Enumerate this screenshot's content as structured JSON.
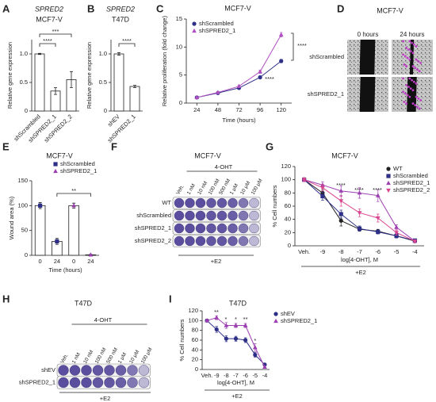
{
  "chart_data": [
    {
      "panel": "A",
      "type": "bar",
      "title": "SPRED2",
      "subtitle": "MCF7-V",
      "ylabel": "Relative gene expression",
      "categories": [
        "shScrambled",
        "shSPRED2_1",
        "shSPRED2_2"
      ],
      "values": [
        1,
        0.35,
        0.55
      ],
      "errors": [
        0.01,
        0.06,
        0.14
      ],
      "ylim": [
        0,
        1.25
      ],
      "yticks": [
        0,
        0.5,
        {
          "value": 1,
          "label": "1.0"
        }
      ],
      "annotations": [
        "****",
        "***"
      ]
    },
    {
      "panel": "B",
      "type": "bar",
      "title": "SPRED2",
      "subtitle": "T47D",
      "ylabel": "Relative gene expression",
      "categories": [
        "shEV",
        "shSPRED2_1"
      ],
      "values": [
        1,
        0.43
      ],
      "errors": [
        0.02,
        0.02
      ],
      "ylim": [
        0,
        1.25
      ],
      "yticks": [
        0,
        0.5,
        {
          "value": 1,
          "label": "1.0"
        }
      ],
      "annotations": [
        "****"
      ]
    },
    {
      "panel": "C",
      "type": "line",
      "title": "MCF7-V",
      "xlabel": "Time (hours)",
      "ylabel": "Relative proliferation (fold change)",
      "x": [
        24,
        48,
        72,
        96,
        120
      ],
      "xlim": [
        12,
        132
      ],
      "xticks": [
        24,
        48,
        72,
        96,
        120
      ],
      "ylim": [
        0,
        15
      ],
      "yticks": [
        0,
        5,
        10,
        15
      ],
      "series": [
        {
          "name": "shScrambled",
          "color": "#2e2f87",
          "marker": "circle",
          "values": [
            1,
            1.8,
            2.7,
            4.6,
            7.5
          ],
          "errors": [
            0.1,
            0.1,
            0.2,
            0.2,
            0.3
          ]
        },
        {
          "name": "shSPRED2_1",
          "color": "#b050c0",
          "marker": "triangle",
          "values": [
            1,
            1.9,
            3,
            5.6,
            12.2
          ],
          "errors": [
            0.1,
            0.1,
            0.2,
            0.3,
            0.4
          ]
        }
      ],
      "annotations": [
        "****",
        "****"
      ]
    },
    {
      "panel": "D",
      "type": "micrograph",
      "title": "MCF7-V",
      "columns": [
        "0 hours",
        "24 hours"
      ],
      "rows": [
        "shScrambled",
        "shSPRED2_1"
      ]
    },
    {
      "panel": "E",
      "type": "bar",
      "title": "MCF7-V",
      "xlabel": "Time (hours)",
      "ylabel": "Wound area (%)",
      "categories": [
        "0",
        "24"
      ],
      "ylim": [
        0,
        150
      ],
      "yticks": [
        0,
        50,
        100,
        150
      ],
      "series": [
        {
          "name": "shScrambled",
          "color": "#2e2f87",
          "marker": "square",
          "values": [
            100,
            28
          ],
          "errors": [
            6,
            6
          ]
        },
        {
          "name": "shSPRED2_1",
          "color": "#9b3fb0",
          "marker": "triangle",
          "values": [
            100,
            1
          ],
          "errors": [
            5,
            1
          ]
        }
      ],
      "annotations": [
        "**"
      ]
    },
    {
      "panel": "F",
      "type": "plate",
      "title": "MCF7-V",
      "treatment": "4-OHT",
      "condition": "+E2",
      "color": "#5b4e9e",
      "columns": [
        "Veh.",
        "1 nM",
        "10 nM",
        "100 nM",
        "500 nM",
        "1 μM",
        "10 μM",
        "100 μM"
      ],
      "rows": [
        "WT",
        "shScrambled",
        "shSPRED2_1",
        "shSPRED2_2"
      ]
    },
    {
      "panel": "G",
      "type": "line",
      "title": "MCF7-V",
      "xlabel": "log[4-OHT], M",
      "ylabel": "% Cell numbers",
      "condition": "+E2",
      "categories": [
        "Veh.",
        "-9",
        "-8",
        "-7",
        "-6",
        "-5",
        "-4"
      ],
      "ylim": [
        0,
        120
      ],
      "yticks": [
        0,
        20,
        40,
        60,
        80,
        100,
        120
      ],
      "series": [
        {
          "name": "WT",
          "color": "#222222",
          "marker": "circle",
          "values": [
            100,
            80,
            38,
            25,
            22,
            15,
            7
          ],
          "errors": [
            3,
            5,
            8,
            3,
            3,
            3,
            2
          ]
        },
        {
          "name": "shScrambled",
          "color": "#2e2f87",
          "marker": "square",
          "values": [
            100,
            75,
            48,
            26,
            21,
            15,
            8
          ],
          "errors": [
            3,
            6,
            6,
            4,
            3,
            3,
            2
          ]
        },
        {
          "name": "shSPRED2_1",
          "color": "#9b3fb0",
          "marker": "triangle",
          "values": [
            100,
            92,
            83,
            80,
            76,
            28,
            7
          ],
          "errors": [
            3,
            5,
            8,
            8,
            9,
            4,
            2
          ]
        },
        {
          "name": "shSPRED2_2",
          "color": "#d9468f",
          "marker": "triangle-down",
          "values": [
            100,
            88,
            68,
            50,
            42,
            20,
            7
          ],
          "errors": [
            3,
            5,
            8,
            6,
            6,
            4,
            2
          ]
        }
      ],
      "annotations": [
        "****",
        "****",
        "****"
      ]
    },
    {
      "panel": "H",
      "type": "plate",
      "title": "T47D",
      "treatment": "4-OHT",
      "condition": "+E2",
      "color": "#5b4e9e",
      "columns": [
        "Veh.",
        "1 nM",
        "10 nM",
        "100 nM",
        "500 nM",
        "1 μM",
        "10 μM",
        "100 μM"
      ],
      "rows": [
        "shEV",
        "shSPRED2_1"
      ]
    },
    {
      "panel": "I",
      "type": "line",
      "title": "T47D",
      "xlabel": "log[4-OHT], M",
      "ylabel": "% Cell numbers",
      "condition": "+E2",
      "categories": [
        "Veh.",
        "-9",
        "-8",
        "-7",
        "-6",
        "-5",
        "-4"
      ],
      "ylim": [
        0,
        120
      ],
      "yticks": [
        0,
        20,
        40,
        60,
        80,
        100,
        120
      ],
      "series": [
        {
          "name": "shEV",
          "color": "#2e2f87",
          "marker": "circle",
          "values": [
            100,
            82,
            63,
            63,
            60,
            30,
            10
          ],
          "errors": [
            3,
            6,
            6,
            5,
            5,
            5,
            3
          ]
        },
        {
          "name": "shSPRED2_1",
          "color": "#9b3fb0",
          "marker": "triangle",
          "values": [
            100,
            106,
            90,
            90,
            90,
            45,
            5
          ],
          "errors": [
            3,
            4,
            6,
            4,
            4,
            8,
            2
          ]
        }
      ],
      "annotations": [
        "**",
        "*",
        "*",
        "**",
        "*"
      ]
    }
  ]
}
